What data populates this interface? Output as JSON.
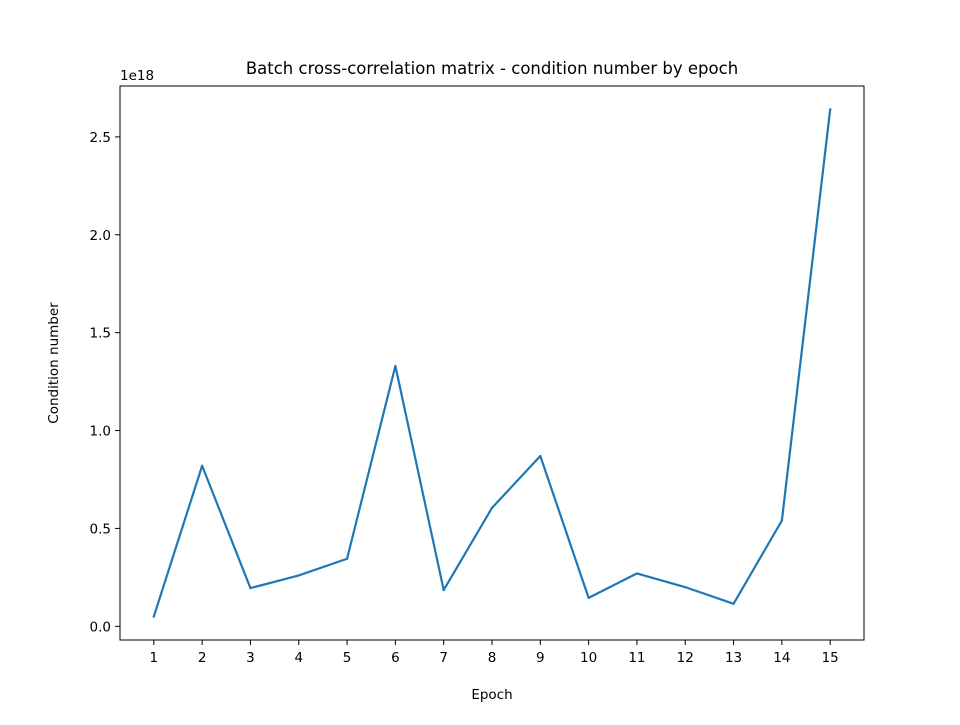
{
  "chart_data": {
    "type": "line",
    "title": "Batch cross-correlation matrix - condition number by epoch",
    "xlabel": "Epoch",
    "ylabel": "Condition number",
    "y_offset_label": "1e18",
    "y_scale_factor": 1e+18,
    "xlim": [
      0.3,
      15.7
    ],
    "ylim": [
      -7e+16,
      2.76e+18
    ],
    "x_ticks": [
      1,
      2,
      3,
      4,
      5,
      6,
      7,
      8,
      9,
      10,
      11,
      12,
      13,
      14,
      15
    ],
    "x_tick_labels": [
      "1",
      "2",
      "3",
      "4",
      "5",
      "6",
      "7",
      "8",
      "9",
      "10",
      "11",
      "12",
      "13",
      "14",
      "15"
    ],
    "y_ticks": [
      0,
      5e+17,
      1e+18,
      1.5e+18,
      2e+18,
      2.5e+18
    ],
    "y_tick_labels": [
      "0.0",
      "0.5",
      "1.0",
      "1.5",
      "2.0",
      "2.5"
    ],
    "grid": false,
    "legend": "none",
    "series": [
      {
        "color": "#1f77b4",
        "x": [
          1,
          2,
          3,
          4,
          5,
          6,
          7,
          8,
          9,
          10,
          11,
          12,
          13,
          14,
          15
        ],
        "y": [
          5e+16,
          8.2e+17,
          1.95e+17,
          2.6e+17,
          3.45e+17,
          1.33e+18,
          1.85e+17,
          6.05e+17,
          8.7e+17,
          1.45e+17,
          2.7e+17,
          2e+17,
          1.15e+17,
          5.4e+17,
          2.64e+18
        ]
      }
    ]
  }
}
